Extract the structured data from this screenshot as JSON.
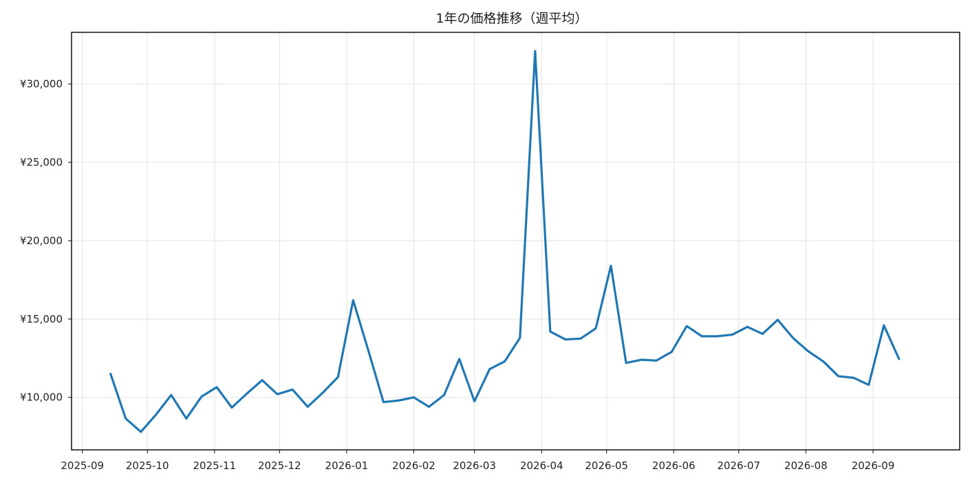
{
  "chart_data": {
    "type": "line",
    "title": "1年の価格推移（週平均）",
    "xlabel": "",
    "ylabel": "",
    "grid": true,
    "legend": "none",
    "line_color": "#1f77b4",
    "x_ticks": [
      "2025-09",
      "2025-10",
      "2025-11",
      "2025-12",
      "2026-01",
      "2026-02",
      "2026-03",
      "2026-04",
      "2026-05",
      "2026-06",
      "2026-07",
      "2026-08",
      "2026-09"
    ],
    "y_ticks": [
      {
        "value": 10000,
        "label": "¥10,000"
      },
      {
        "value": 15000,
        "label": "¥15,000"
      },
      {
        "value": 20000,
        "label": "¥20,000"
      },
      {
        "value": 25000,
        "label": "¥25,000"
      },
      {
        "value": 30000,
        "label": "¥30,000"
      }
    ],
    "xlim": [
      "2025-08-27",
      "2026-10-11"
    ],
    "ylim": [
      6650,
      33300
    ],
    "series": [
      {
        "x": [
          "2025-09-14",
          "2025-09-21",
          "2025-09-28",
          "2025-10-05",
          "2025-10-12",
          "2025-10-19",
          "2025-10-26",
          "2025-11-02",
          "2025-11-09",
          "2025-11-16",
          "2025-11-23",
          "2025-11-30",
          "2025-12-07",
          "2025-12-14",
          "2025-12-21",
          "2025-12-28",
          "2026-01-04",
          "2026-01-11",
          "2026-01-18",
          "2026-01-25",
          "2026-02-01",
          "2026-02-08",
          "2026-02-15",
          "2026-02-22",
          "2026-03-01",
          "2026-03-08",
          "2026-03-15",
          "2026-03-22",
          "2026-03-29",
          "2026-04-05",
          "2026-04-12",
          "2026-04-19",
          "2026-04-26",
          "2026-05-03",
          "2026-05-10",
          "2026-05-17",
          "2026-05-24",
          "2026-05-31",
          "2026-06-07",
          "2026-06-14",
          "2026-06-21",
          "2026-06-28",
          "2026-07-05",
          "2026-07-12",
          "2026-07-19",
          "2026-07-26",
          "2026-08-02",
          "2026-08-09",
          "2026-08-16",
          "2026-08-23",
          "2026-08-30",
          "2026-09-06",
          "2026-09-13"
        ],
        "values": [
          11500,
          8650,
          7800,
          8900,
          10150,
          8650,
          10050,
          10650,
          9350,
          10250,
          11100,
          10200,
          10500,
          9400,
          10300,
          11300,
          16200,
          13000,
          9700,
          9800,
          10000,
          9400,
          10150,
          12450,
          9750,
          11800,
          12300,
          13800,
          32100,
          14200,
          13700,
          13750,
          14400,
          18400,
          12200,
          12400,
          12350,
          12900,
          14550,
          13900,
          13900,
          14000,
          14500,
          14050,
          14950,
          13800,
          12950,
          12300,
          11350,
          11250,
          10800,
          14600,
          12450
        ]
      }
    ]
  }
}
